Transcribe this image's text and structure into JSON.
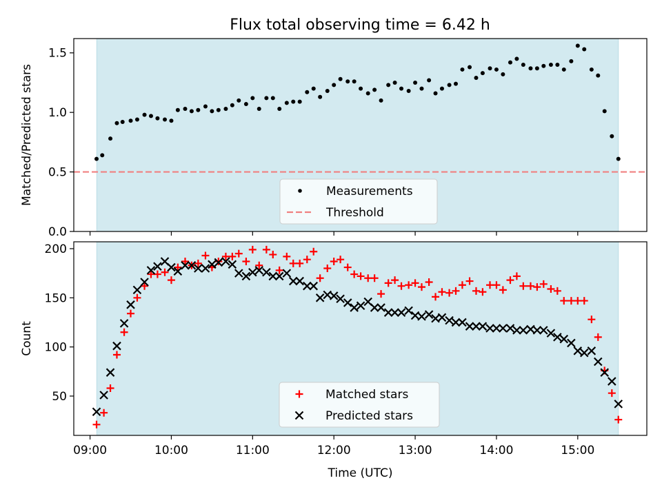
{
  "title": "Flux total observing time = 6.42 h",
  "chart_data": [
    {
      "type": "scatter",
      "panel": "top",
      "ylabel": "Matched/Predicted stars",
      "ylim": [
        0,
        1.62
      ],
      "yticks": [
        0.0,
        0.5,
        1.0,
        1.5
      ],
      "ytick_labels": [
        "0.0",
        "0.5",
        "1.0",
        "1.5"
      ],
      "shaded_span": [
        9.083,
        15.5
      ],
      "shade_color": "#d3eaf0",
      "threshold": {
        "name": "Threshold",
        "value": 0.5,
        "color": "#f08080",
        "style": "dashed"
      },
      "series": [
        {
          "name": "Measurements",
          "marker": "dot",
          "color": "#000000",
          "points": [
            [
              9.08,
              0.61
            ],
            [
              9.15,
              0.64
            ],
            [
              9.25,
              0.78
            ],
            [
              9.33,
              0.91
            ],
            [
              9.4,
              0.92
            ],
            [
              9.5,
              0.93
            ],
            [
              9.58,
              0.94
            ],
            [
              9.67,
              0.98
            ],
            [
              9.75,
              0.97
            ],
            [
              9.83,
              0.95
            ],
            [
              9.92,
              0.94
            ],
            [
              10.0,
              0.93
            ],
            [
              10.08,
              1.02
            ],
            [
              10.17,
              1.03
            ],
            [
              10.25,
              1.01
            ],
            [
              10.33,
              1.02
            ],
            [
              10.42,
              1.05
            ],
            [
              10.5,
              1.01
            ],
            [
              10.58,
              1.02
            ],
            [
              10.67,
              1.03
            ],
            [
              10.75,
              1.06
            ],
            [
              10.83,
              1.1
            ],
            [
              10.92,
              1.07
            ],
            [
              11.0,
              1.12
            ],
            [
              11.08,
              1.03
            ],
            [
              11.17,
              1.12
            ],
            [
              11.25,
              1.12
            ],
            [
              11.33,
              1.03
            ],
            [
              11.42,
              1.08
            ],
            [
              11.5,
              1.09
            ],
            [
              11.58,
              1.09
            ],
            [
              11.67,
              1.17
            ],
            [
              11.75,
              1.2
            ],
            [
              11.83,
              1.13
            ],
            [
              11.92,
              1.18
            ],
            [
              12.0,
              1.23
            ],
            [
              12.08,
              1.28
            ],
            [
              12.17,
              1.26
            ],
            [
              12.25,
              1.26
            ],
            [
              12.33,
              1.2
            ],
            [
              12.42,
              1.16
            ],
            [
              12.5,
              1.19
            ],
            [
              12.58,
              1.1
            ],
            [
              12.67,
              1.23
            ],
            [
              12.75,
              1.25
            ],
            [
              12.83,
              1.2
            ],
            [
              12.92,
              1.18
            ],
            [
              13.0,
              1.25
            ],
            [
              13.08,
              1.2
            ],
            [
              13.17,
              1.27
            ],
            [
              13.25,
              1.16
            ],
            [
              13.33,
              1.2
            ],
            [
              13.42,
              1.23
            ],
            [
              13.5,
              1.24
            ],
            [
              13.58,
              1.36
            ],
            [
              13.67,
              1.38
            ],
            [
              13.75,
              1.29
            ],
            [
              13.83,
              1.33
            ],
            [
              13.92,
              1.37
            ],
            [
              14.0,
              1.36
            ],
            [
              14.08,
              1.32
            ],
            [
              14.17,
              1.42
            ],
            [
              14.25,
              1.45
            ],
            [
              14.33,
              1.4
            ],
            [
              14.42,
              1.37
            ],
            [
              14.5,
              1.37
            ],
            [
              14.58,
              1.39
            ],
            [
              14.67,
              1.4
            ],
            [
              14.75,
              1.4
            ],
            [
              14.83,
              1.36
            ],
            [
              14.92,
              1.43
            ],
            [
              15.0,
              1.56
            ],
            [
              15.08,
              1.53
            ],
            [
              15.17,
              1.36
            ],
            [
              15.25,
              1.31
            ],
            [
              15.33,
              1.01
            ],
            [
              15.42,
              0.8
            ],
            [
              15.5,
              0.61
            ]
          ]
        }
      ],
      "legend": {
        "position": "bottom-center",
        "items": [
          "Measurements",
          "Threshold"
        ]
      }
    },
    {
      "type": "scatter",
      "panel": "bottom",
      "xlabel": "Time (UTC)",
      "ylabel": "Count",
      "xlim": [
        8.8,
        15.85
      ],
      "ylim": [
        10,
        207
      ],
      "xticks": [
        9,
        10,
        11,
        12,
        13,
        14,
        15
      ],
      "xtick_labels": [
        "09:00",
        "10:00",
        "11:00",
        "12:00",
        "13:00",
        "14:00",
        "15:00"
      ],
      "yticks": [
        50,
        100,
        150,
        200
      ],
      "ytick_labels": [
        "50",
        "100",
        "150",
        "200"
      ],
      "shaded_span": [
        9.083,
        15.5
      ],
      "shade_color": "#d3eaf0",
      "series": [
        {
          "name": "Matched stars",
          "marker": "plus",
          "color": "#ff0000",
          "points": [
            [
              9.08,
              21
            ],
            [
              9.17,
              33
            ],
            [
              9.25,
              58
            ],
            [
              9.33,
              92
            ],
            [
              9.42,
              115
            ],
            [
              9.5,
              134
            ],
            [
              9.58,
              150
            ],
            [
              9.67,
              162
            ],
            [
              9.75,
              174
            ],
            [
              9.83,
              174
            ],
            [
              9.92,
              176
            ],
            [
              10.0,
              168
            ],
            [
              10.08,
              181
            ],
            [
              10.17,
              187
            ],
            [
              10.25,
              183
            ],
            [
              10.33,
              185
            ],
            [
              10.42,
              193
            ],
            [
              10.5,
              181
            ],
            [
              10.58,
              187
            ],
            [
              10.67,
              192
            ],
            [
              10.75,
              192
            ],
            [
              10.83,
              195
            ],
            [
              10.92,
              187
            ],
            [
              11.0,
              199
            ],
            [
              11.08,
              183
            ],
            [
              11.17,
              199
            ],
            [
              11.25,
              194
            ],
            [
              11.33,
              178
            ],
            [
              11.42,
              192
            ],
            [
              11.5,
              185
            ],
            [
              11.58,
              185
            ],
            [
              11.67,
              189
            ],
            [
              11.75,
              197
            ],
            [
              11.83,
              170
            ],
            [
              11.92,
              180
            ],
            [
              12.0,
              187
            ],
            [
              12.08,
              189
            ],
            [
              12.17,
              181
            ],
            [
              12.25,
              174
            ],
            [
              12.33,
              172
            ],
            [
              12.42,
              170
            ],
            [
              12.5,
              170
            ],
            [
              12.58,
              154
            ],
            [
              12.67,
              165
            ],
            [
              12.75,
              168
            ],
            [
              12.83,
              162
            ],
            [
              12.92,
              163
            ],
            [
              13.0,
              165
            ],
            [
              13.08,
              161
            ],
            [
              13.17,
              166
            ],
            [
              13.25,
              151
            ],
            [
              13.33,
              156
            ],
            [
              13.42,
              155
            ],
            [
              13.5,
              157
            ],
            [
              13.58,
              163
            ],
            [
              13.67,
              167
            ],
            [
              13.75,
              157
            ],
            [
              13.83,
              156
            ],
            [
              13.92,
              163
            ],
            [
              14.0,
              163
            ],
            [
              14.08,
              158
            ],
            [
              14.17,
              168
            ],
            [
              14.25,
              172
            ],
            [
              14.33,
              162
            ],
            [
              14.42,
              162
            ],
            [
              14.5,
              161
            ],
            [
              14.58,
              164
            ],
            [
              14.67,
              159
            ],
            [
              14.75,
              157
            ],
            [
              14.83,
              147
            ],
            [
              14.92,
              147
            ],
            [
              15.0,
              147
            ],
            [
              15.08,
              147
            ],
            [
              15.17,
              128
            ],
            [
              15.25,
              110
            ],
            [
              15.33,
              76
            ],
            [
              15.42,
              53
            ],
            [
              15.5,
              26
            ]
          ]
        },
        {
          "name": "Predicted stars",
          "marker": "x",
          "color": "#000000",
          "points": [
            [
              9.08,
              34
            ],
            [
              9.17,
              51
            ],
            [
              9.25,
              74
            ],
            [
              9.33,
              101
            ],
            [
              9.42,
              124
            ],
            [
              9.5,
              143
            ],
            [
              9.58,
              158
            ],
            [
              9.67,
              166
            ],
            [
              9.75,
              178
            ],
            [
              9.83,
              182
            ],
            [
              9.92,
              187
            ],
            [
              10.0,
              181
            ],
            [
              10.08,
              177
            ],
            [
              10.17,
              183
            ],
            [
              10.25,
              183
            ],
            [
              10.33,
              180
            ],
            [
              10.42,
              180
            ],
            [
              10.5,
              184
            ],
            [
              10.58,
              186
            ],
            [
              10.67,
              187
            ],
            [
              10.75,
              184
            ],
            [
              10.83,
              175
            ],
            [
              10.92,
              172
            ],
            [
              11.0,
              176
            ],
            [
              11.08,
              178
            ],
            [
              11.17,
              176
            ],
            [
              11.25,
              172
            ],
            [
              11.33,
              172
            ],
            [
              11.42,
              175
            ],
            [
              11.5,
              167
            ],
            [
              11.58,
              167
            ],
            [
              11.67,
              162
            ],
            [
              11.75,
              162
            ],
            [
              11.83,
              150
            ],
            [
              11.92,
              153
            ],
            [
              12.0,
              152
            ],
            [
              12.08,
              149
            ],
            [
              12.17,
              145
            ],
            [
              12.25,
              140
            ],
            [
              12.33,
              142
            ],
            [
              12.42,
              146
            ],
            [
              12.5,
              140
            ],
            [
              12.58,
              140
            ],
            [
              12.67,
              135
            ],
            [
              12.75,
              135
            ],
            [
              12.83,
              135
            ],
            [
              12.92,
              137
            ],
            [
              13.0,
              132
            ],
            [
              13.08,
              131
            ],
            [
              13.17,
              133
            ],
            [
              13.25,
              129
            ],
            [
              13.33,
              130
            ],
            [
              13.42,
              127
            ],
            [
              13.5,
              125
            ],
            [
              13.58,
              125
            ],
            [
              13.67,
              121
            ],
            [
              13.75,
              121
            ],
            [
              13.83,
              121
            ],
            [
              13.92,
              119
            ],
            [
              14.0,
              119
            ],
            [
              14.08,
              119
            ],
            [
              14.17,
              119
            ],
            [
              14.25,
              117
            ],
            [
              14.33,
              117
            ],
            [
              14.42,
              118
            ],
            [
              14.5,
              117
            ],
            [
              14.58,
              117
            ],
            [
              14.67,
              114
            ],
            [
              14.75,
              110
            ],
            [
              14.83,
              108
            ],
            [
              14.92,
              104
            ],
            [
              15.0,
              96
            ],
            [
              15.08,
              94
            ],
            [
              15.17,
              96
            ],
            [
              15.25,
              85
            ],
            [
              15.33,
              74
            ],
            [
              15.42,
              65
            ],
            [
              15.5,
              42
            ]
          ]
        }
      ],
      "legend": {
        "position": "bottom-center",
        "items": [
          "Matched stars",
          "Predicted stars"
        ]
      }
    }
  ]
}
